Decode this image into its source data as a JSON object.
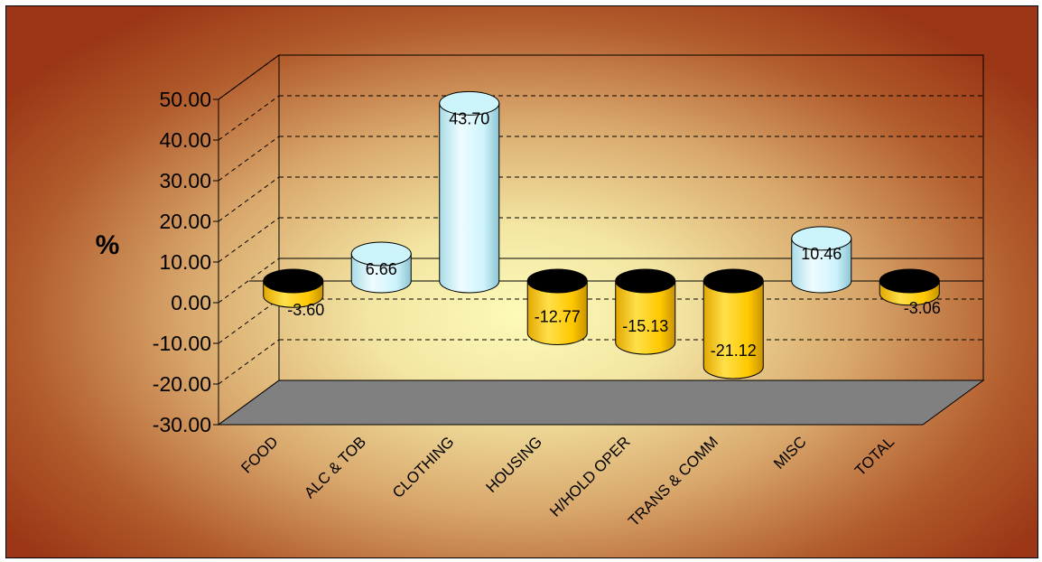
{
  "chart_data": {
    "type": "bar",
    "ylabel": "%",
    "ylim": [
      -30,
      50
    ],
    "yticks": [
      "50.00",
      "40.00",
      "30.00",
      "20.00",
      "10.00",
      "0.00",
      "-10.00",
      "-20.00",
      "-30.00"
    ],
    "categories": [
      "FOOD",
      "ALC & TOB",
      "CLOTHING",
      "HOUSING",
      "H/HOLD OPER",
      "TRANS & COMM",
      "MISC",
      "TOTAL"
    ],
    "values": [
      -3.6,
      6.66,
      43.7,
      -12.77,
      -15.13,
      -21.12,
      10.46,
      -3.06
    ],
    "data_labels": [
      "-3.60",
      "6.66",
      "43.70",
      "-12.77",
      "-15.13",
      "-21.12",
      "10.46",
      "-3.06"
    ],
    "grid": true,
    "colors": {
      "positive": "#cdf3fb",
      "negative": "#ffcc00",
      "floor": "#808080",
      "grid": "#000000"
    }
  }
}
